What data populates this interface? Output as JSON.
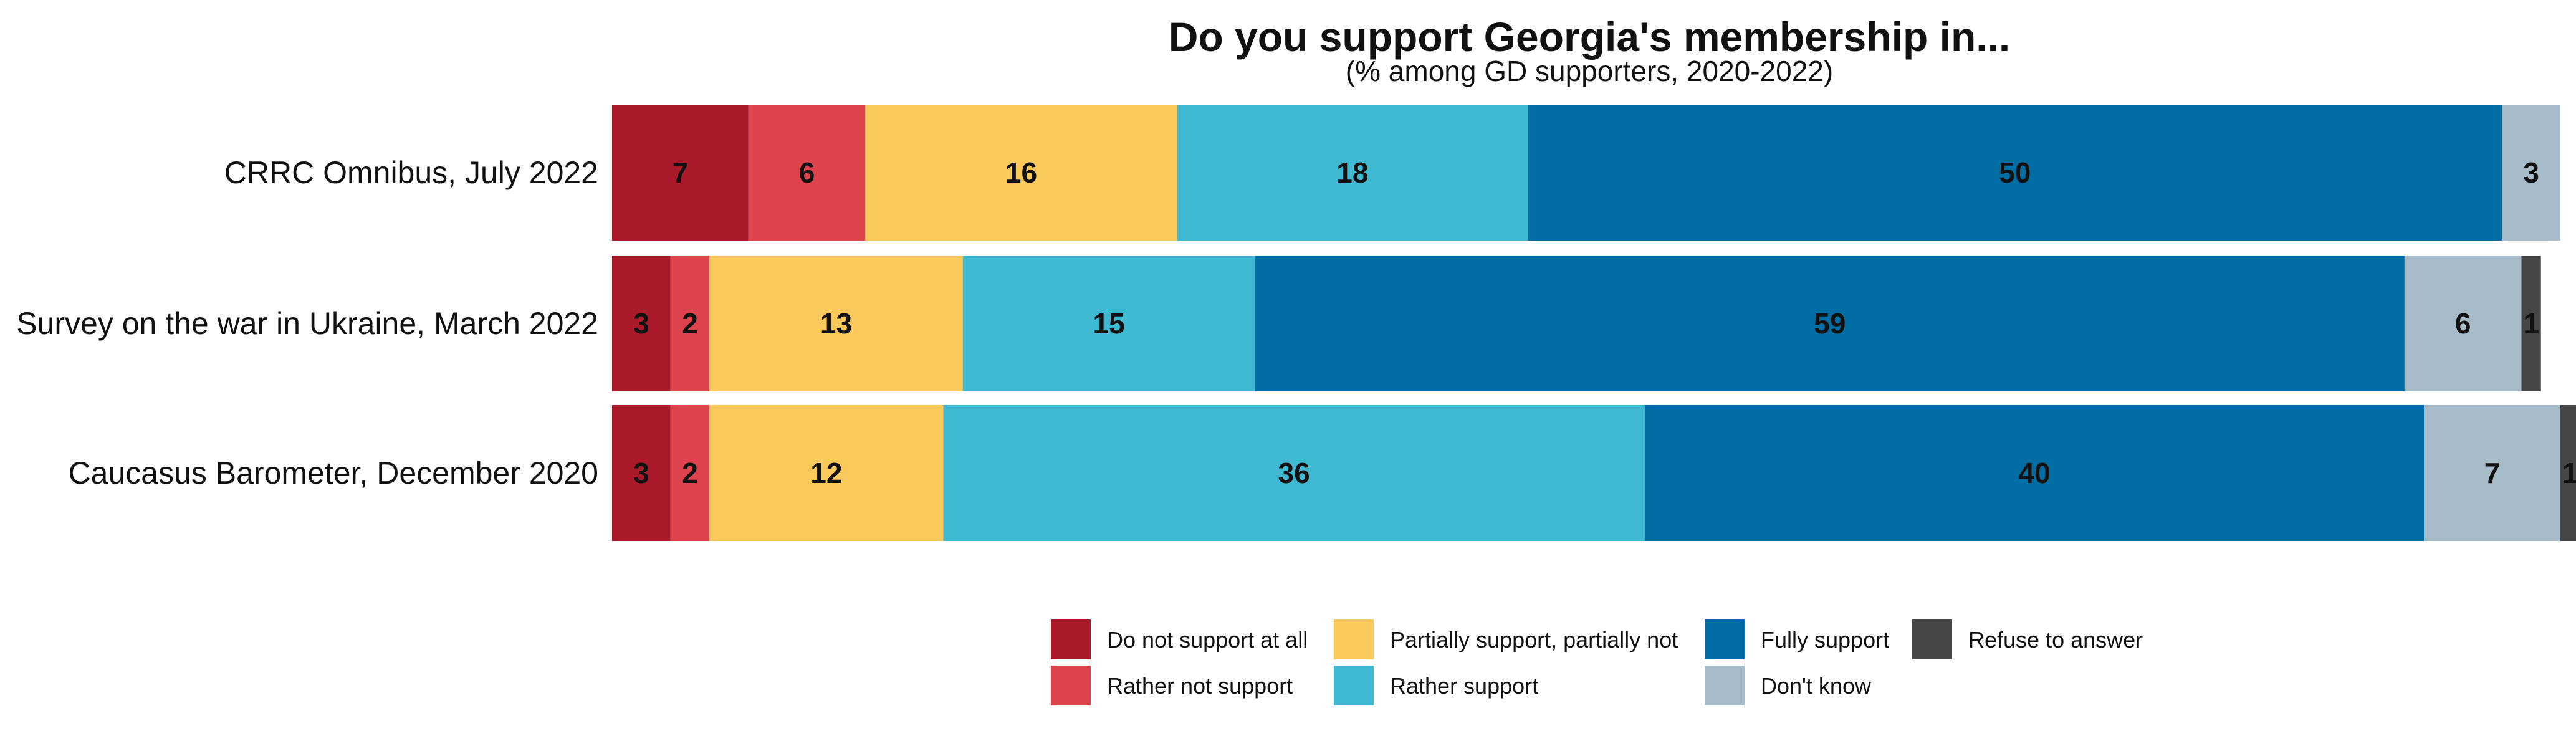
{
  "chart_data": {
    "type": "bar",
    "orientation": "horizontal",
    "stacked": true,
    "title": "Do you support Georgia's membership in...",
    "subtitle": "(% among GD supporters, 2020-2022)",
    "categories": [
      "CRRC Omnibus, July 2022",
      "Survey on the war in Ukraine, March 2022",
      "Caucasus Barometer, December 2020"
    ],
    "series": [
      {
        "name": "Do not support at all",
        "color": "#ab1a2b",
        "values": [
          7,
          3,
          3
        ]
      },
      {
        "name": "Rather not support",
        "color": "#de444d",
        "values": [
          6,
          2,
          2
        ]
      },
      {
        "name": "Partially support, partially not",
        "color": "#f9c95c",
        "values": [
          16,
          13,
          12
        ]
      },
      {
        "name": "Rather support",
        "color": "#3fbad2",
        "values": [
          18,
          15,
          36
        ]
      },
      {
        "name": "Fully support",
        "color": "#006da5",
        "values": [
          50,
          59,
          40
        ]
      },
      {
        "name": "Don't know",
        "color": "#a7bcc8",
        "values": [
          3,
          6,
          7
        ]
      },
      {
        "name": "Refuse to answer",
        "color": "#464646",
        "values": [
          0,
          1,
          1
        ]
      }
    ],
    "xlim": [
      0,
      100
    ],
    "grid": false,
    "legend_position": "bottom"
  }
}
